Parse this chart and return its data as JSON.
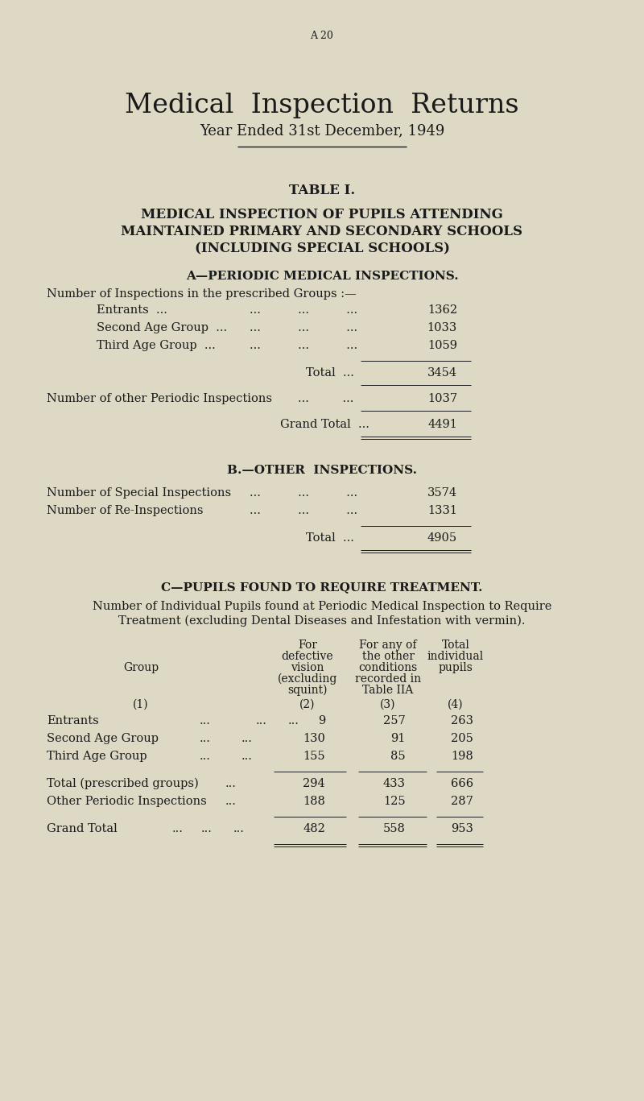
{
  "bg_color": "#ddd9c4",
  "text_color": "#1a1a1a",
  "page_label": "A 20",
  "main_title": "Medical  Inspection  Returns",
  "subtitle": "Year Ended 31st December, 1949",
  "table_title": "TABLE I.",
  "table_sub1": "MEDICAL INSPECTION OF PUPILS ATTENDING",
  "table_sub2": "MAINTAINED PRIMARY AND SECONDARY SCHOOLS",
  "table_sub3": "(INCLUDING SPECIAL SCHOOLS)",
  "sec_a_title": "A—PERIODIC MEDICAL INSPECTIONS.",
  "sec_a_intro": "Number of Inspections in the prescribed Groups :—",
  "sec_a_row1_label": "Entrants  ...",
  "sec_a_row1_dots": "...          ...          ...",
  "sec_a_row1_val": "1362",
  "sec_a_row2_label": "Second Age Group  ...",
  "sec_a_row2_dots": "...          ...          ...",
  "sec_a_row2_val": "1033",
  "sec_a_row3_label": "Third Age Group  ...",
  "sec_a_row3_dots": "...          ...          ...",
  "sec_a_row3_val": "1059",
  "sec_a_total_dots": "Total  ...",
  "sec_a_total_val": "3454",
  "sec_a_other_label": "Number of other Periodic Inspections",
  "sec_a_other_dots": "...         ...",
  "sec_a_other_val": "1037",
  "sec_a_grand_label": "Grand Total  ...",
  "sec_a_grand_val": "4491",
  "sec_b_title": "B.—OTHER  INSPECTIONS.",
  "sec_b_row1_label": "Number of Special Inspections",
  "sec_b_row1_dots": "...          ...          ...",
  "sec_b_row1_val": "3574",
  "sec_b_row2_label": "Number of Re-Inspections",
  "sec_b_row2_dots": "...          ...          ...",
  "sec_b_row2_val": "1331",
  "sec_b_total_dots": "Total  ...",
  "sec_b_total_val": "4905",
  "sec_c_title": "C—PUPILS FOUND TO REQUIRE TREATMENT.",
  "sec_c_intro1": "Number of Individual Pupils found at Periodic Medical Inspection to Require",
  "sec_c_intro2": "Treatment (excluding Dental Diseases and Infestation with vermin).",
  "col_group": "Group",
  "col2_hdr": [
    "For",
    "defective",
    "vision",
    "(excluding",
    "squint)"
  ],
  "col3_hdr": [
    "For any of",
    "the other",
    "conditions",
    "recorded in",
    "Table IIA"
  ],
  "col4_hdr": [
    "Total",
    "individual",
    "pupils"
  ],
  "col_nums": [
    "(1)",
    "(2)",
    "(3)",
    "(4)"
  ],
  "tc_rows": [
    [
      "Entrants",
      "...",
      "...",
      "...",
      "9",
      "257",
      "263"
    ],
    [
      "Second Age Group",
      "...",
      "...",
      "130",
      "91",
      "205"
    ],
    [
      "Third Age Group",
      "...",
      "...",
      "155",
      "85",
      "198"
    ]
  ],
  "tc_total": [
    "Total (prescribed groups)",
    "...",
    "294",
    "433",
    "666"
  ],
  "tc_other": [
    "Other Periodic Inspections",
    "...",
    "188",
    "125",
    "287"
  ],
  "tc_grand": [
    "Grand Total",
    "...",
    "...",
    "...",
    "482",
    "558",
    "953"
  ]
}
